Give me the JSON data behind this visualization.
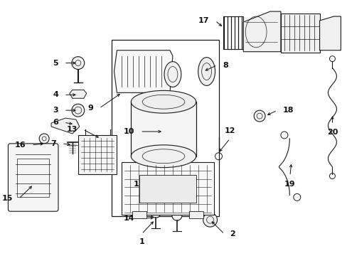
{
  "bg_color": "#ffffff",
  "line_color": "#1a1a1a",
  "text_color": "#111111",
  "fig_width": 4.89,
  "fig_height": 3.6,
  "dpi": 100
}
